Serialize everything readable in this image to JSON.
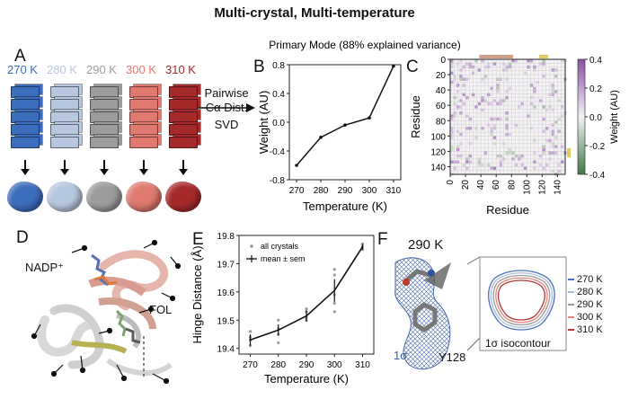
{
  "title": "Multi-crystal, Multi-temperature",
  "panels": {
    "A": {
      "letter": "A",
      "temperatures": [
        {
          "label": "270 K",
          "color": "#3d6dbd"
        },
        {
          "label": "280 K",
          "color": "#b7c7df"
        },
        {
          "label": "290 K",
          "color": "#9c9c9c"
        },
        {
          "label": "300 K",
          "color": "#e07a70"
        },
        {
          "label": "310 K",
          "color": "#a52a2a"
        }
      ],
      "pipeline_line1": "Pairwise",
      "pipeline_line2": "Cα Dist.",
      "pipeline_line3": "SVD"
    },
    "B": {
      "letter": "B"
    },
    "C": {
      "letter": "C"
    },
    "D": {
      "letter": "D",
      "label_nadp": "NADP⁺",
      "label_fol": "FOL"
    },
    "E": {
      "letter": "E"
    },
    "F": {
      "letter": "F",
      "temp_label": "290 K",
      "sigma_label": "1σ",
      "residue_label": "Y128",
      "isocontour_label": "1σ isocontour",
      "legend": [
        "270 K",
        "280 K",
        "290 K",
        "300 K",
        "310 K"
      ],
      "legend_colors": [
        "#4a6fc0",
        "#a9bbd8",
        "#9a9a9a",
        "#e2857c",
        "#b8383a"
      ]
    }
  },
  "chart_data": [
    {
      "id": "B",
      "type": "line",
      "title": "Primary Mode (88% explained variance)",
      "xlabel": "Temperature (K)",
      "ylabel": "Weight (AU)",
      "x": [
        270,
        280,
        290,
        300,
        310
      ],
      "y": [
        -0.6,
        -0.21,
        -0.04,
        0.06,
        0.78
      ],
      "xlim": [
        267,
        313
      ],
      "ylim": [
        -0.8,
        0.8
      ],
      "xticks": [
        "270",
        "280",
        "290",
        "300",
        "310"
      ],
      "yticks": [
        "0.8",
        "0.4",
        "0.0",
        "-0.4",
        "-0.8"
      ]
    },
    {
      "id": "C",
      "type": "heatmap",
      "xlabel": "Residue",
      "ylabel": "Residue",
      "xticks": [
        "0",
        "20",
        "40",
        "60",
        "80",
        "100",
        "120",
        "140"
      ],
      "yticks": [
        "0",
        "20",
        "40",
        "60",
        "80",
        "100",
        "120",
        "140"
      ],
      "colorbar_label": "Weight (AU)",
      "colorbar_ticks": [
        "0.4",
        "0.2",
        "0.0",
        "-0.2",
        "-0.4"
      ],
      "range": [
        -0.4,
        0.4
      ],
      "grid": "on"
    },
    {
      "id": "E",
      "type": "line",
      "xlabel": "Temperature (K)",
      "ylabel": "Hinge Distance (Å)",
      "x": [
        270,
        280,
        290,
        300,
        310
      ],
      "mean": [
        19.43,
        19.465,
        19.515,
        19.605,
        19.76
      ],
      "sem": [
        0.02,
        0.02,
        0.02,
        0.04,
        0.01
      ],
      "crystals": [
        [
          19.41,
          19.43,
          19.44,
          19.46
        ],
        [
          19.42,
          19.45,
          19.47,
          19.5
        ],
        [
          19.5,
          19.51,
          19.53,
          19.54
        ],
        [
          19.53,
          19.56,
          19.59,
          19.66,
          19.68
        ],
        [
          19.75,
          19.76,
          19.77
        ]
      ],
      "xlim": [
        266,
        314
      ],
      "ylim": [
        19.38,
        19.8
      ],
      "xticks": [
        "270",
        "280",
        "290",
        "300",
        "310"
      ],
      "yticks": [
        "19.8",
        "19.7",
        "19.6",
        "19.5",
        "19.4"
      ],
      "legend": [
        "all crystals",
        "mean ± sem"
      ],
      "legend_position": "top-left"
    }
  ]
}
